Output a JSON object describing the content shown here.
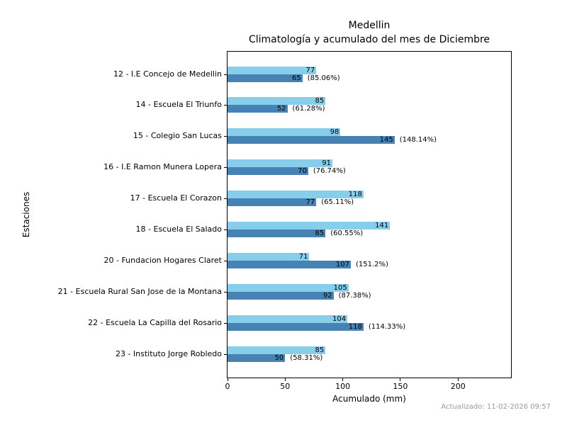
{
  "title": {
    "line1": "Medellin",
    "line2": "Climatología y acumulado del mes de Diciembre"
  },
  "footer": {
    "updated": "Actualizado: 11-02-2026 09:57"
  },
  "chart_data": {
    "type": "bar",
    "orientation": "horizontal",
    "title_lines": [
      "Medellin",
      "Climatología y acumulado del mes de Diciembre"
    ],
    "xlabel": "Acumulado (mm)",
    "ylabel": "Estaciones",
    "xlim": [
      0,
      246
    ],
    "xticks": [
      0,
      50,
      100,
      150,
      200
    ],
    "grid": false,
    "legend": "none",
    "categories": [
      "12 - I.E Concejo de Medellin",
      "14 - Escuela El Triunfo",
      "15 - Colegio San Lucas",
      "16 - I.E Ramon Munera Lopera",
      "17 - Escuela El Corazon",
      "18 - Escuela El Salado",
      "20 - Fundacion Hogares Claret",
      "21 - Escuela Rural San Jose de la Montana",
      "22 - Escuela La Capilla del Rosario",
      "23 - Instituto Jorge Robledo"
    ],
    "series": [
      {
        "name": "climatologia",
        "color": "#87CEEB",
        "values": [
          77,
          85,
          98,
          91,
          118,
          141,
          71,
          105,
          104,
          85
        ]
      },
      {
        "name": "acumulado",
        "color": "#4682B4",
        "values": [
          65,
          52,
          145,
          70,
          77,
          85,
          107,
          92,
          118,
          50
        ]
      }
    ],
    "percent_labels": [
      "(85.06%)",
      "(61.28%)",
      "(148.14%)",
      "(76.74%)",
      "(65.11%)",
      "(60.55%)",
      "(151.2%)",
      "(87.38%)",
      "(114.33%)",
      "(58.31%)"
    ]
  }
}
